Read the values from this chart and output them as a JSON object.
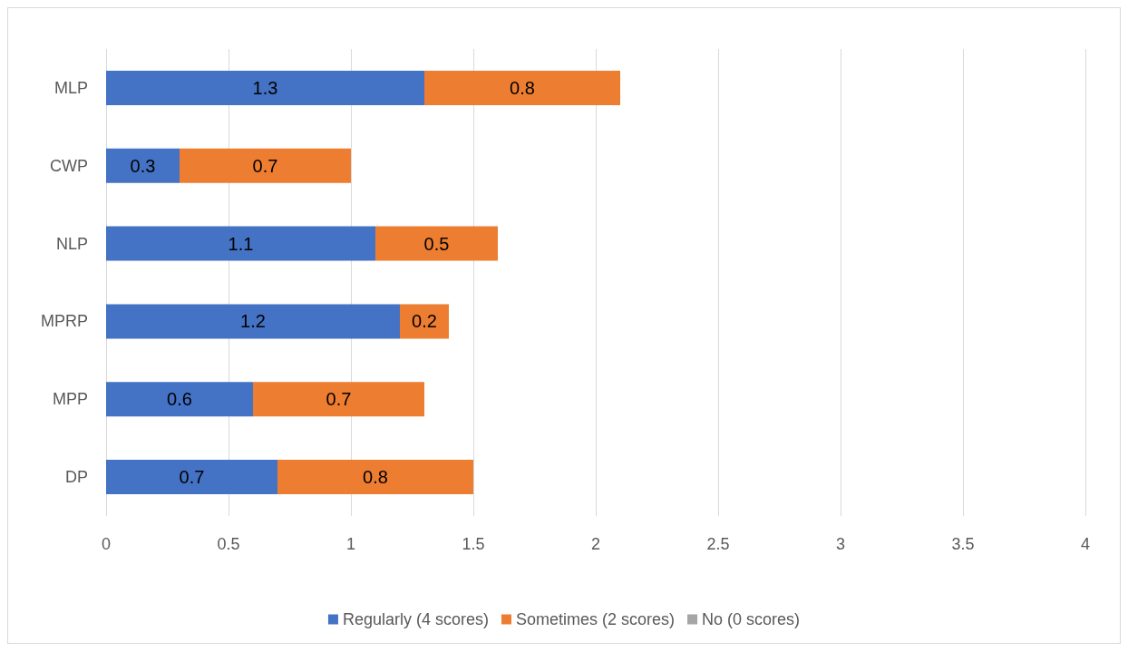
{
  "chart_data": {
    "type": "bar",
    "orientation": "horizontal",
    "stacked": true,
    "categories": [
      "MLP",
      "CWP",
      "NLP",
      "MPRP",
      "MPP",
      "DP"
    ],
    "series": [
      {
        "name": "Regularly (4 scores)",
        "color": "#4472c4",
        "values": [
          1.3,
          0.3,
          1.1,
          1.2,
          0.6,
          0.7
        ]
      },
      {
        "name": "Sometimes (2 scores)",
        "color": "#ed7d31",
        "values": [
          0.8,
          0.7,
          0.5,
          0.2,
          0.7,
          0.8
        ]
      },
      {
        "name": "No (0 scores)",
        "color": "#a5a5a5",
        "values": [
          null,
          null,
          null,
          null,
          null,
          null
        ]
      }
    ],
    "xlim": [
      0,
      4
    ],
    "xticks": [
      0,
      0.5,
      1,
      1.5,
      2,
      2.5,
      3,
      3.5,
      4
    ],
    "grid": "x",
    "legend": "bottom",
    "data_labels": true
  }
}
